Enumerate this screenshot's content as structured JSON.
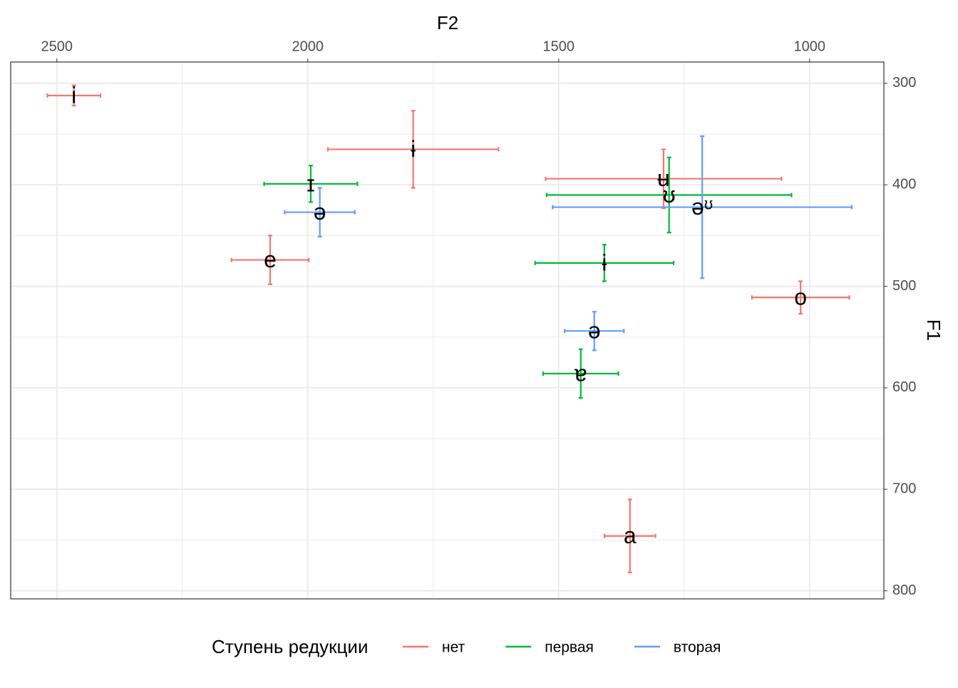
{
  "chart_data": {
    "type": "scatter",
    "x_label": "F2",
    "y_label": "F1",
    "xlim": [
      2592,
      852
    ],
    "ylim": [
      279,
      808
    ],
    "xticks": [
      2500,
      2000,
      1500,
      1000
    ],
    "yticks": [
      300,
      400,
      500,
      600,
      700,
      800
    ],
    "xminor": [
      2250,
      1750,
      1250
    ],
    "yminor": [
      350,
      450,
      550,
      650,
      750
    ],
    "grid": true,
    "legend_position": "bottom",
    "legend_title": "Ступень редукции",
    "series": [
      {
        "name": "нет",
        "color": "#F8766D",
        "labels": [
          "i",
          "ɨ",
          "e",
          "ʉ",
          "o",
          "a"
        ],
        "x": [
          2466,
          1790,
          2075,
          1291,
          1018,
          1358
        ],
        "values": [
          312,
          365,
          474,
          394,
          511,
          746
        ],
        "xerr": [
          53,
          170,
          77,
          235,
          97,
          51
        ],
        "yerr": [
          10,
          38,
          24,
          29,
          16,
          36
        ]
      },
      {
        "name": "первая",
        "color": "#00BA38",
        "labels": [
          "ɪ",
          "ʊ",
          "ɨ",
          "ɐ"
        ],
        "x": [
          1994,
          1280,
          1409,
          1456
        ],
        "values": [
          399,
          410,
          477,
          586
        ],
        "xerr": [
          93,
          244,
          138,
          75
        ],
        "yerr": [
          18,
          37,
          18,
          24
        ]
      },
      {
        "name": "вторая",
        "color": "#619CFF",
        "labels": [
          "ə",
          "əᶷ",
          "ə"
        ],
        "x": [
          1976,
          1214,
          1429
        ],
        "values": [
          427,
          422,
          544
        ],
        "xerr": [
          70,
          298,
          59
        ],
        "yerr": [
          24,
          70,
          19
        ]
      }
    ]
  }
}
